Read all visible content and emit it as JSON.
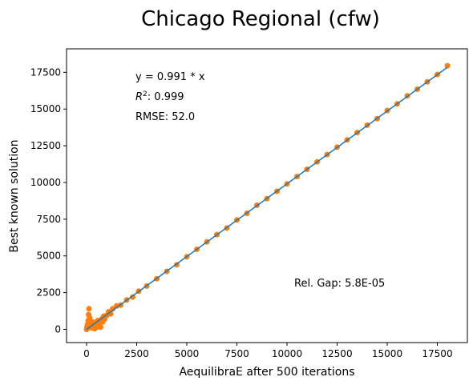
{
  "chart_data": {
    "type": "scatter",
    "title": "Chicago Regional (cfw)",
    "xlabel": "AequilibraE after 500 iterations",
    "ylabel": "Best known solution",
    "xlim": [
      -1000,
      19000
    ],
    "ylim": [
      -900,
      19100
    ],
    "xticks": [
      0,
      2500,
      5000,
      7500,
      10000,
      12500,
      15000,
      17500
    ],
    "xtick_labels": [
      "0",
      "2500",
      "5000",
      "7500",
      "10000",
      "12500",
      "15000",
      "17500"
    ],
    "yticks": [
      0,
      2500,
      5000,
      7500,
      10000,
      12500,
      15000,
      17500
    ],
    "ytick_labels": [
      "0",
      "2500",
      "5000",
      "7500",
      "10000",
      "12500",
      "15000",
      "17500"
    ],
    "grid": false,
    "fit_line": {
      "slope": 0.991,
      "x_range": [
        0,
        18000
      ],
      "color": "#1f77b4"
    },
    "point_color": "#ff7f0e",
    "annotations": {
      "equation": "y = 0.991 * x",
      "r2_label": "R",
      "r2_sup": "2",
      "r2_value": ":  0.999",
      "rmse": "RMSE: 52.0",
      "rel_gap": "Rel. Gap: 5.8E-05"
    },
    "series": [
      {
        "points": [
          [
            0,
            0
          ],
          [
            20,
            150
          ],
          [
            50,
            350
          ],
          [
            80,
            600
          ],
          [
            100,
            1000
          ],
          [
            120,
            1400
          ],
          [
            150,
            800
          ],
          [
            200,
            300
          ],
          [
            250,
            100
          ],
          [
            300,
            500
          ],
          [
            350,
            200
          ],
          [
            400,
            50
          ],
          [
            450,
            350
          ],
          [
            500,
            150
          ],
          [
            550,
            600
          ],
          [
            600,
            250
          ],
          [
            650,
            400
          ],
          [
            700,
            150
          ],
          [
            750,
            700
          ],
          [
            800,
            500
          ],
          [
            850,
            900
          ],
          [
            900,
            700
          ],
          [
            1000,
            950
          ],
          [
            1100,
            1200
          ],
          [
            1200,
            1050
          ],
          [
            1300,
            1400
          ],
          [
            1500,
            1600
          ],
          [
            1700,
            1650
          ],
          [
            2000,
            2000
          ],
          [
            2300,
            2200
          ],
          [
            2600,
            2600
          ],
          [
            3000,
            2950
          ],
          [
            3500,
            3450
          ],
          [
            4000,
            3950
          ],
          [
            4500,
            4400
          ],
          [
            5000,
            4950
          ],
          [
            5500,
            5450
          ],
          [
            6000,
            5950
          ],
          [
            6500,
            6450
          ],
          [
            7000,
            6900
          ],
          [
            7500,
            7450
          ],
          [
            8000,
            7900
          ],
          [
            8500,
            8450
          ],
          [
            9000,
            8900
          ],
          [
            9500,
            9400
          ],
          [
            10000,
            9900
          ],
          [
            10500,
            10400
          ],
          [
            11000,
            10900
          ],
          [
            11500,
            11400
          ],
          [
            12000,
            11900
          ],
          [
            12500,
            12400
          ],
          [
            13000,
            12900
          ],
          [
            13500,
            13400
          ],
          [
            14000,
            13900
          ],
          [
            14500,
            14350
          ],
          [
            15000,
            14900
          ],
          [
            15500,
            15350
          ],
          [
            16000,
            15900
          ],
          [
            16500,
            16350
          ],
          [
            17000,
            16850
          ],
          [
            17500,
            17350
          ],
          [
            18000,
            17950
          ]
        ]
      }
    ]
  }
}
